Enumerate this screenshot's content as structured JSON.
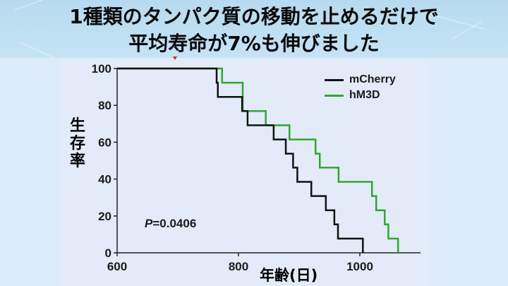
{
  "title": {
    "line1": "1種類のタンパク質の移動を止めるだけで",
    "line2": "平均寿命が7%も伸びました"
  },
  "colors": {
    "header_bg": "#bfe0f3",
    "panel_bg": "#e3ebf8",
    "mcherry": "#111111",
    "hm3d": "#2ea82e",
    "marker": "#e02020"
  },
  "chart_data": {
    "type": "line",
    "subtype": "kaplan-meier-step",
    "title": "",
    "xlabel": "年齢(日)",
    "ylabel": "生存率",
    "xlim": [
      600,
      1100
    ],
    "ylim": [
      0,
      100
    ],
    "xticks": [
      600,
      800,
      1000
    ],
    "yticks": [
      0,
      20,
      40,
      60,
      80,
      100
    ],
    "grid": false,
    "legend_position": "upper right",
    "annotation": "P=0.0406",
    "series": [
      {
        "name": "mCherry",
        "color": "#111111",
        "x": [
          600,
          764,
          766,
          806,
          815,
          858,
          878,
          890,
          897,
          920,
          944,
          958,
          964,
          1005
        ],
        "y": [
          100,
          92.3,
          84.6,
          76.9,
          69.2,
          61.5,
          53.8,
          46.2,
          38.5,
          30.8,
          23.1,
          15.4,
          7.7,
          0
        ]
      },
      {
        "name": "hM3D",
        "color": "#2ea82e",
        "x": [
          600,
          773,
          807,
          845,
          884,
          927,
          934,
          965,
          1020,
          1027,
          1041,
          1047,
          1063
        ],
        "y": [
          100,
          92.3,
          76.9,
          69.2,
          61.5,
          53.8,
          46.2,
          38.5,
          30.8,
          23.1,
          15.4,
          7.7,
          0
        ]
      }
    ]
  },
  "axis": {
    "ylabel": "生存率",
    "xlabel": "年齢(日)",
    "yticks": [
      "100",
      "80",
      "60",
      "40",
      "20",
      "0"
    ],
    "xticks": [
      "600",
      "800",
      "1000"
    ]
  },
  "annotation": {
    "p_label": "P",
    "p_value": "=0.0406"
  },
  "legend": [
    {
      "label": "mCherry",
      "color": "#111111"
    },
    {
      "label": "hM3D",
      "color": "#2ea82e"
    }
  ]
}
